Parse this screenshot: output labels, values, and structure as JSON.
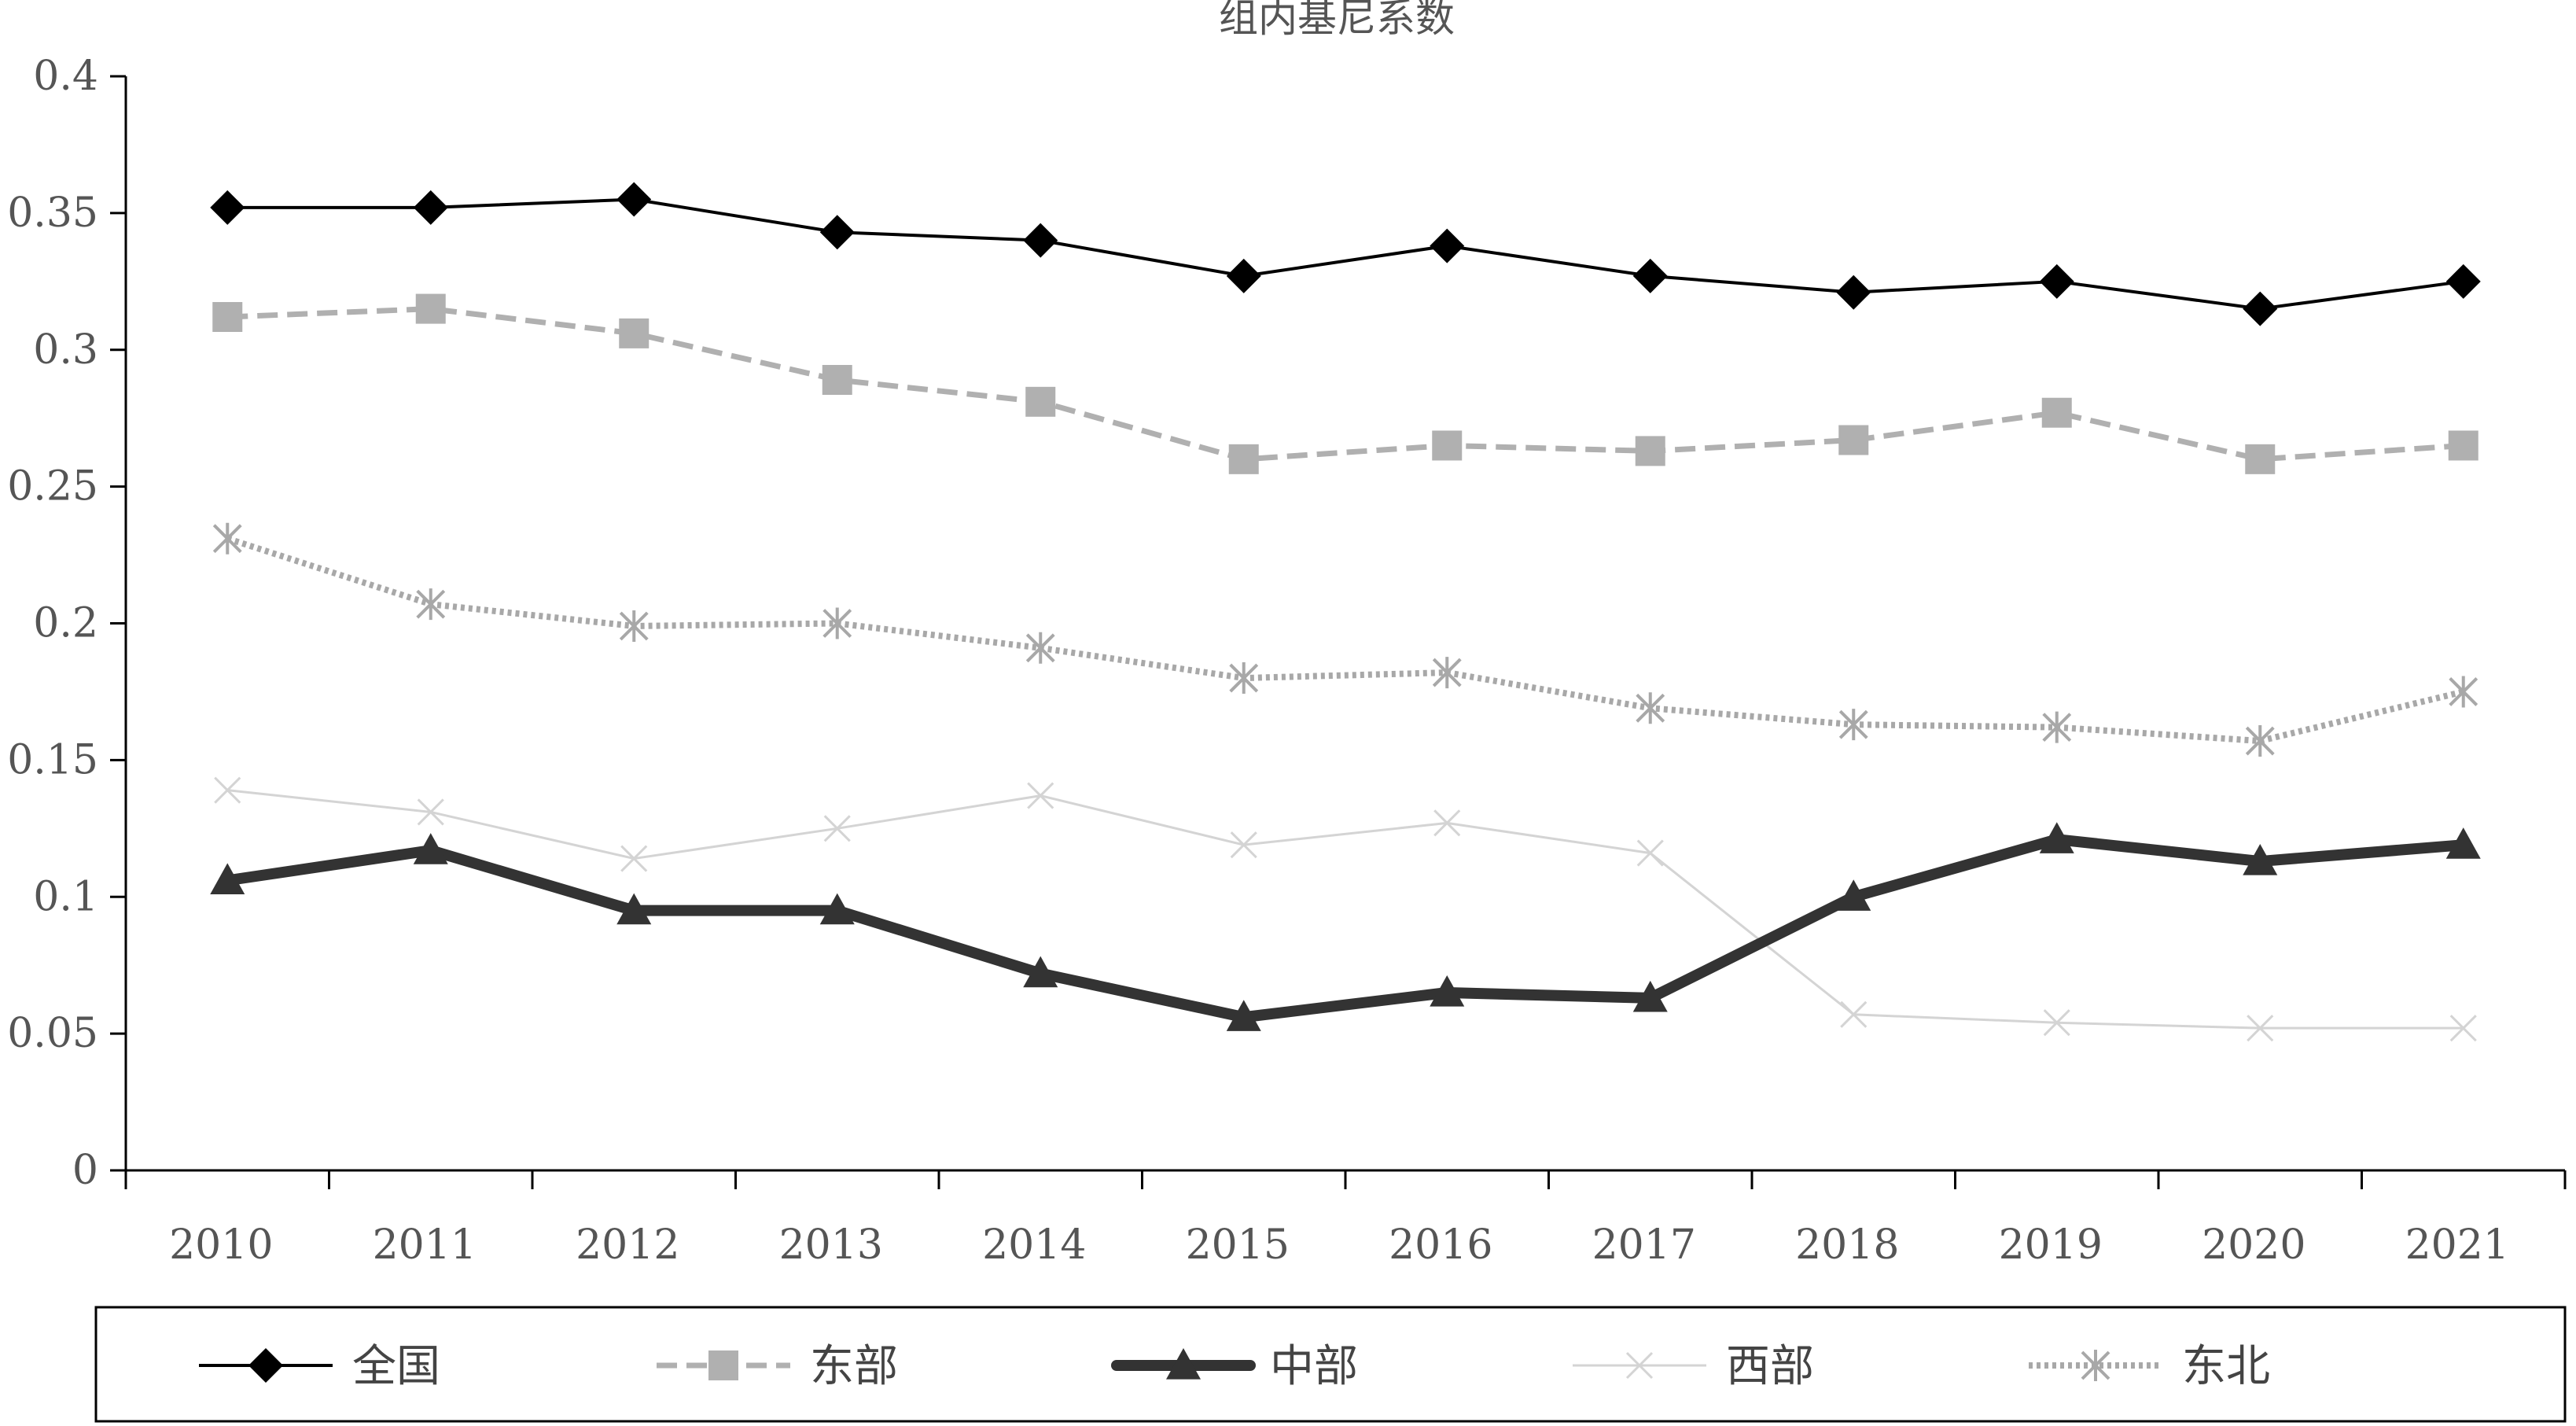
{
  "chart_data": {
    "type": "line",
    "title": "组内基尼系数",
    "xlabel": "",
    "ylabel": "",
    "categories": [
      "2010",
      "2011",
      "2012",
      "2013",
      "2014",
      "2015",
      "2016",
      "2017",
      "2018",
      "2019",
      "2020",
      "2021"
    ],
    "ylim": [
      0,
      0.4
    ],
    "yticks": [
      "0",
      "0.05",
      "0.1",
      "0.15",
      "0.2",
      "0.25",
      "0.3",
      "0.35",
      "0.4"
    ],
    "grid": false,
    "legend_position": "bottom",
    "series": [
      {
        "name": "全国",
        "color": "#000000",
        "style": "solid",
        "marker": "diamond",
        "values": [
          0.352,
          0.352,
          0.355,
          0.343,
          0.34,
          0.327,
          0.338,
          0.327,
          0.321,
          0.325,
          0.315,
          0.325
        ]
      },
      {
        "name": "东部",
        "color": "#b0b0b0",
        "style": "dashed",
        "marker": "square",
        "values": [
          0.312,
          0.315,
          0.306,
          0.289,
          0.281,
          0.26,
          0.265,
          0.263,
          0.267,
          0.277,
          0.26,
          0.265
        ]
      },
      {
        "name": "中部",
        "color": "#333333",
        "style": "thick",
        "marker": "triangle",
        "values": [
          0.106,
          0.117,
          0.095,
          0.095,
          0.072,
          0.056,
          0.065,
          0.063,
          0.1,
          0.121,
          0.113,
          0.119
        ]
      },
      {
        "name": "西部",
        "color": "#d4d4d4",
        "style": "thin",
        "marker": "x",
        "values": [
          0.139,
          0.131,
          0.114,
          0.125,
          0.137,
          0.119,
          0.127,
          0.116,
          0.057,
          0.054,
          0.052,
          0.052
        ]
      },
      {
        "name": "东北",
        "color": "#a8a8a8",
        "style": "dotted",
        "marker": "asterisk",
        "values": [
          0.231,
          0.207,
          0.199,
          0.2,
          0.191,
          0.18,
          0.182,
          0.169,
          0.163,
          0.162,
          0.157,
          0.175
        ]
      }
    ]
  }
}
